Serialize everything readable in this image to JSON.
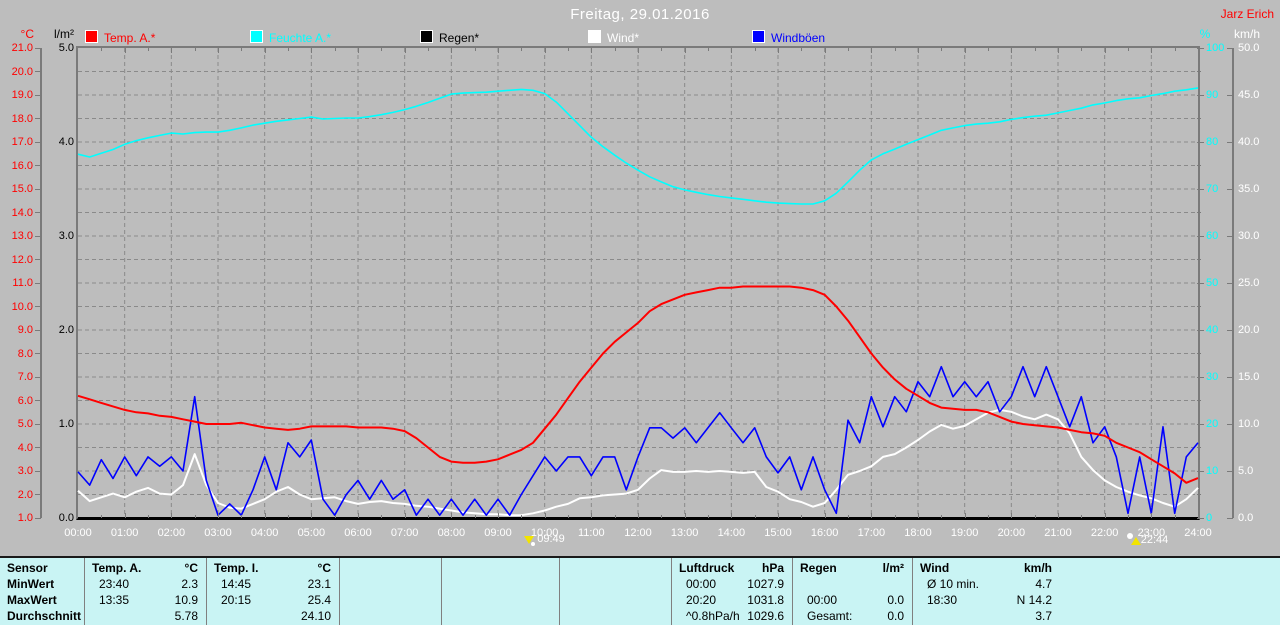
{
  "header": {
    "title": "Freitag, 29.01.2016",
    "author": "Jarz Erich"
  },
  "legend": [
    {
      "label": "Temp. A.*",
      "color": "#ff0000"
    },
    {
      "label": "Feuchte A.*",
      "color": "#00ffff"
    },
    {
      "label": "Regen*",
      "color": "#000000"
    },
    {
      "label": "Wind*",
      "color": "#ffffff"
    },
    {
      "label": "Windböen",
      "color": "#0000ff"
    }
  ],
  "axes": {
    "temp": {
      "unit": "°C",
      "color": "#ff0000",
      "min": 1,
      "max": 21,
      "tick_step": 1,
      "decimals": 1
    },
    "rain": {
      "unit": "l/m²",
      "color": "#000000",
      "min": 0,
      "max": 5,
      "tick_step": 1,
      "decimals": 1
    },
    "humidity": {
      "unit": "%",
      "color": "#00ffff",
      "min": 0,
      "max": 100,
      "tick_step": 10,
      "decimals": 0
    },
    "wind": {
      "unit": "km/h",
      "color": "#ffffff",
      "min": 0,
      "max": 50,
      "tick_step": 5,
      "decimals": 1
    }
  },
  "x_axis": {
    "labels": [
      "00:00",
      "01:00",
      "02:00",
      "03:00",
      "04:00",
      "05:00",
      "06:00",
      "07:00",
      "08:00",
      "09:00",
      "10:00",
      "11:00",
      "12:00",
      "13:00",
      "14:00",
      "15:00",
      "16:00",
      "17:00",
      "18:00",
      "19:00",
      "20:00",
      "21:00",
      "22:00",
      "23:00",
      "24:00"
    ]
  },
  "markers": [
    {
      "time": "09:49",
      "hour": 9.82,
      "icon": "sun-down-arrow-icon"
    },
    {
      "time": "22:44",
      "hour": 22.73,
      "icon": "moon-up-arrow-icon"
    }
  ],
  "chart_data": {
    "type": "line",
    "title": "Freitag, 29.01.2016",
    "x_start_hour": 0,
    "x_step_hours": 0.25,
    "grid": "dashed",
    "series": [
      {
        "name": "Temp. A.*",
        "axis": "temp",
        "color": "#ff0000",
        "values": [
          6.2,
          6.05,
          5.9,
          5.75,
          5.6,
          5.5,
          5.45,
          5.35,
          5.3,
          5.2,
          5.1,
          5.0,
          5.0,
          5.0,
          5.05,
          4.95,
          4.85,
          4.8,
          4.75,
          4.8,
          4.9,
          4.9,
          4.9,
          4.9,
          4.85,
          4.85,
          4.85,
          4.8,
          4.7,
          4.4,
          4.0,
          3.6,
          3.4,
          3.35,
          3.35,
          3.4,
          3.5,
          3.7,
          3.9,
          4.2,
          4.8,
          5.4,
          6.1,
          6.8,
          7.4,
          8.0,
          8.5,
          8.9,
          9.3,
          9.8,
          10.1,
          10.3,
          10.5,
          10.6,
          10.7,
          10.8,
          10.8,
          10.85,
          10.85,
          10.85,
          10.85,
          10.85,
          10.8,
          10.7,
          10.5,
          10.0,
          9.4,
          8.7,
          8.0,
          7.4,
          6.9,
          6.5,
          6.2,
          5.9,
          5.7,
          5.65,
          5.6,
          5.6,
          5.5,
          5.3,
          5.1,
          5.0,
          4.95,
          4.9,
          4.85,
          4.75,
          4.65,
          4.6,
          4.5,
          4.2,
          4.0,
          3.8,
          3.5,
          3.2,
          2.9,
          2.5,
          2.7
        ]
      },
      {
        "name": "Feuchte A.*",
        "axis": "humidity",
        "color": "#00ffff",
        "values": [
          77.4,
          76.8,
          77.6,
          78.4,
          79.5,
          80.3,
          80.9,
          81.4,
          81.9,
          81.7,
          82.0,
          82.1,
          82.1,
          82.5,
          83.0,
          83.6,
          84.0,
          84.4,
          84.7,
          85.0,
          85.3,
          84.9,
          85.0,
          85.1,
          85.1,
          85.4,
          85.8,
          86.3,
          86.9,
          87.6,
          88.4,
          89.3,
          90.2,
          90.4,
          90.5,
          90.6,
          90.8,
          91.0,
          91.2,
          91.0,
          90.3,
          88.5,
          86.0,
          83.5,
          81.0,
          79.0,
          77.2,
          75.5,
          74.0,
          72.6,
          71.5,
          70.5,
          69.8,
          69.3,
          68.8,
          68.4,
          68.1,
          67.8,
          67.5,
          67.2,
          67.0,
          66.9,
          66.8,
          66.8,
          67.5,
          69.1,
          71.5,
          74.0,
          76.2,
          77.5,
          78.5,
          79.5,
          80.5,
          81.5,
          82.5,
          83.0,
          83.5,
          83.8,
          84.0,
          84.3,
          84.8,
          85.2,
          85.5,
          85.7,
          86.2,
          86.7,
          87.2,
          87.9,
          88.3,
          88.8,
          89.2,
          89.4,
          89.9,
          90.3,
          90.8,
          91.1,
          91.5
        ]
      },
      {
        "name": "Regen*",
        "axis": "rain",
        "color": "#000000",
        "values": [
          0,
          0,
          0,
          0,
          0,
          0,
          0,
          0,
          0,
          0,
          0,
          0,
          0,
          0,
          0,
          0,
          0,
          0,
          0,
          0,
          0,
          0,
          0,
          0,
          0,
          0,
          0,
          0,
          0,
          0,
          0,
          0,
          0,
          0,
          0,
          0,
          0,
          0,
          0,
          0,
          0,
          0,
          0,
          0,
          0,
          0,
          0,
          0,
          0,
          0,
          0,
          0,
          0,
          0,
          0,
          0,
          0,
          0,
          0,
          0,
          0,
          0,
          0,
          0,
          0,
          0,
          0,
          0,
          0,
          0,
          0,
          0,
          0,
          0,
          0,
          0,
          0,
          0,
          0,
          0,
          0,
          0,
          0,
          0,
          0,
          0,
          0,
          0,
          0,
          0,
          0,
          0,
          0,
          0,
          0,
          0,
          0
        ]
      },
      {
        "name": "Wind*",
        "axis": "wind",
        "color": "#ffffff",
        "values": [
          2.9,
          1.8,
          2.2,
          2.6,
          2.2,
          2.8,
          3.2,
          2.6,
          2.5,
          3.5,
          6.8,
          3.5,
          1.6,
          1.1,
          1.0,
          1.5,
          2.0,
          2.8,
          3.3,
          2.5,
          2.0,
          2.1,
          2.2,
          1.8,
          1.5,
          1.7,
          1.8,
          1.6,
          1.5,
          1.3,
          1.2,
          1.0,
          0.8,
          0.6,
          0.5,
          0.4,
          0.4,
          0.3,
          0.3,
          0.5,
          0.8,
          1.2,
          1.5,
          2.1,
          2.2,
          2.4,
          2.5,
          2.6,
          3.0,
          4.2,
          5.1,
          4.9,
          4.9,
          5.0,
          4.9,
          5.0,
          4.9,
          4.8,
          4.9,
          3.3,
          2.8,
          2.0,
          1.7,
          1.2,
          1.6,
          3.0,
          4.6,
          5.0,
          5.5,
          6.5,
          6.8,
          7.5,
          8.3,
          9.2,
          9.9,
          9.5,
          9.8,
          10.5,
          11.2,
          11.5,
          11.3,
          10.8,
          10.5,
          11.0,
          10.5,
          9.0,
          6.5,
          5.1,
          4.0,
          3.3,
          2.8,
          2.4,
          2.1,
          1.6,
          1.2,
          2.0,
          3.2
        ]
      },
      {
        "name": "Windböen",
        "axis": "wind",
        "color": "#0000ff",
        "values": [
          4.9,
          3.5,
          6.2,
          4.2,
          6.5,
          4.5,
          6.5,
          5.5,
          6.5,
          5.0,
          12.9,
          4.0,
          0.3,
          1.5,
          0.3,
          3.0,
          6.5,
          3.0,
          8.0,
          6.5,
          8.3,
          2.0,
          0.3,
          2.5,
          4.0,
          2.0,
          4.0,
          2.0,
          3.0,
          0.3,
          2.0,
          0.3,
          2.0,
          0.3,
          2.0,
          0.3,
          2.0,
          0.3,
          2.5,
          4.5,
          6.5,
          5.0,
          6.5,
          6.5,
          4.5,
          6.5,
          6.5,
          3.0,
          6.5,
          9.6,
          9.6,
          8.5,
          9.6,
          8.0,
          9.6,
          11.2,
          9.6,
          8.0,
          9.6,
          6.5,
          4.8,
          6.5,
          3.0,
          6.5,
          3.0,
          0.5,
          10.4,
          8.0,
          12.9,
          9.7,
          12.9,
          11.3,
          14.5,
          12.9,
          16.1,
          12.9,
          14.5,
          12.9,
          14.5,
          11.3,
          12.9,
          16.1,
          12.9,
          16.1,
          12.9,
          9.7,
          12.9,
          8.0,
          9.7,
          6.5,
          0.5,
          6.5,
          0.5,
          9.7,
          0.5,
          6.5,
          8.0
        ]
      }
    ]
  },
  "table": {
    "row_labels": [
      "Sensor",
      "MinWert",
      "MaxWert",
      "Durchschnitt"
    ],
    "columns": [
      {
        "title": "Temp. A.",
        "unit": "°C",
        "rows": [
          [
            "23:40",
            "2.3"
          ],
          [
            "13:35",
            "10.9"
          ],
          [
            "",
            "5.78"
          ]
        ]
      },
      {
        "title": "Temp. I.",
        "unit": "°C",
        "rows": [
          [
            "14:45",
            "23.1"
          ],
          [
            "20:15",
            "25.4"
          ],
          [
            "",
            "24.10"
          ]
        ]
      },
      {
        "title": "",
        "unit": "",
        "rows": [
          [
            "",
            ""
          ],
          [
            "",
            ""
          ],
          [
            "",
            ""
          ]
        ]
      },
      {
        "title": "",
        "unit": "",
        "rows": [
          [
            "",
            ""
          ],
          [
            "",
            ""
          ],
          [
            "",
            ""
          ]
        ]
      },
      {
        "title": "",
        "unit": "",
        "rows": [
          [
            "",
            ""
          ],
          [
            "",
            ""
          ],
          [
            "",
            ""
          ]
        ]
      },
      {
        "title": "Luftdruck",
        "unit": "hPa",
        "rows": [
          [
            "00:00",
            "1027.9"
          ],
          [
            "20:20",
            "1031.8"
          ],
          [
            "^0.8hPa/h",
            "1029.6"
          ]
        ]
      },
      {
        "title": "Regen",
        "unit": "l/m²",
        "rows": [
          [
            "",
            ""
          ],
          [
            "00:00",
            "0.0"
          ],
          [
            "Gesamt:",
            "0.0"
          ]
        ]
      },
      {
        "title": "Wind",
        "unit": "km/h",
        "rows": [
          [
            "Ø 10 min.",
            "4.7"
          ],
          [
            "18:30",
            "N 14.2"
          ],
          [
            "",
            "3.7"
          ]
        ]
      },
      {
        "title": "",
        "unit": "",
        "rows": [
          [
            "",
            ""
          ],
          [
            "",
            ""
          ],
          [
            "",
            ""
          ]
        ]
      }
    ]
  },
  "colors": {
    "background": "#bdbdbd",
    "grid": "#8a8a8a",
    "frame": "#7a7a7a",
    "table_background": "#c9f4f4",
    "table_divider": "#808080",
    "title_text": "#ffffff"
  }
}
